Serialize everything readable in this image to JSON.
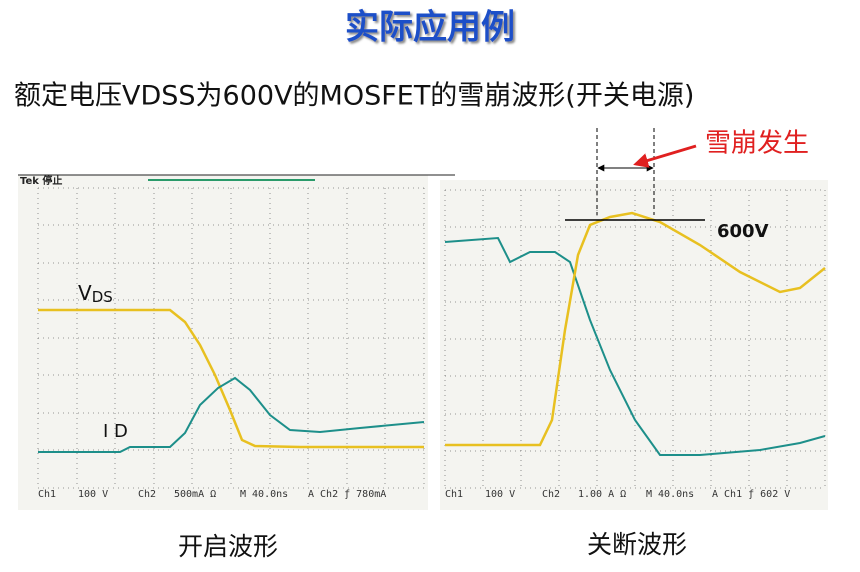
{
  "header": {
    "title": "实际应用例",
    "subtitle": "额定电压VDSS为600V的MOSFET的雪崩波形(开关电源)"
  },
  "annotation": {
    "avalanche": "雪崩发生",
    "voltage": "600V"
  },
  "scopes": [
    {
      "brand": "Tek 停止",
      "vds_label": "V",
      "vds_sub": "DS",
      "id_label": "I D",
      "status": [
        "Ch1",
        "100 V",
        "Ch2",
        "500mA Ω",
        "M 40.0ns",
        "A Ch2 ƒ 780mA"
      ],
      "caption": "开启波形"
    },
    {
      "status": [
        "Ch1",
        "100 V",
        "Ch2",
        "1.00 A Ω",
        "M 40.0ns",
        "A Ch1 ƒ 602 V"
      ],
      "caption": "关断波形"
    }
  ]
}
